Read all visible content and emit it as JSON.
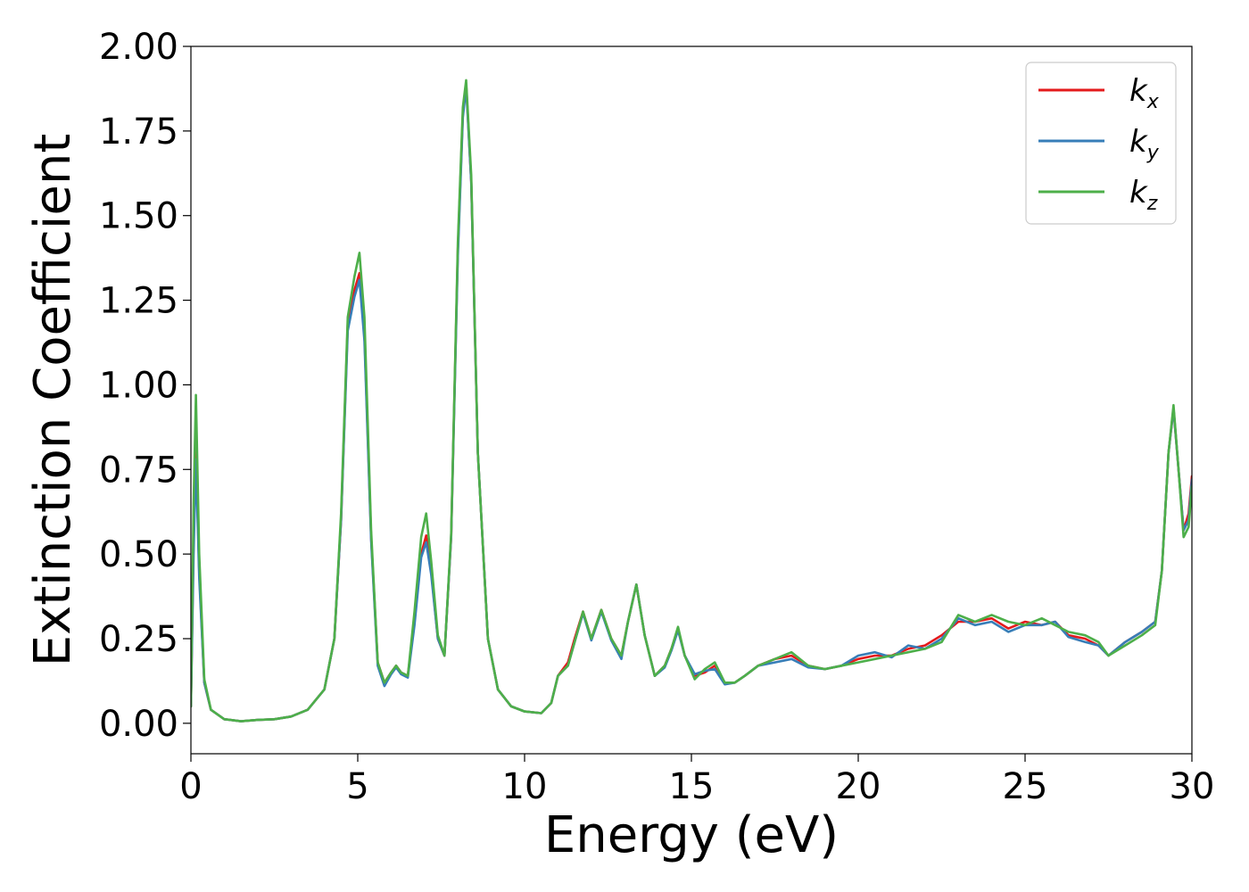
{
  "chart_data": {
    "type": "line",
    "title": "",
    "xlabel": "Energy (eV)",
    "ylabel": "Extinction Coefficient",
    "xlim": [
      0,
      30
    ],
    "ylim": [
      -0.09,
      2.0
    ],
    "xticks": [
      0,
      5,
      10,
      15,
      20,
      25,
      30
    ],
    "xtick_labels": [
      "0",
      "5",
      "10",
      "15",
      "20",
      "25",
      "30"
    ],
    "yticks": [
      0,
      0.25,
      0.5,
      0.75,
      1.0,
      1.25,
      1.5,
      1.75,
      2.0
    ],
    "ytick_labels": [
      "0.00",
      "0.25",
      "0.50",
      "0.75",
      "1.00",
      "1.25",
      "1.50",
      "1.75",
      "2.00"
    ],
    "grid": false,
    "legend_position": "top-right",
    "series": [
      {
        "name": "k_x",
        "legend_main": "k",
        "legend_sub": "x",
        "color": "#e41a1c",
        "points": [
          [
            0,
            0.05
          ],
          [
            0.08,
            0.55
          ],
          [
            0.15,
            0.83
          ],
          [
            0.25,
            0.45
          ],
          [
            0.4,
            0.12
          ],
          [
            0.6,
            0.04
          ],
          [
            1,
            0.012
          ],
          [
            1.5,
            0.006
          ],
          [
            2,
            0.01
          ],
          [
            2.5,
            0.012
          ],
          [
            3,
            0.02
          ],
          [
            3.5,
            0.04
          ],
          [
            4,
            0.1
          ],
          [
            4.3,
            0.25
          ],
          [
            4.5,
            0.6
          ],
          [
            4.7,
            1.18
          ],
          [
            4.9,
            1.28
          ],
          [
            5.05,
            1.33
          ],
          [
            5.2,
            1.15
          ],
          [
            5.4,
            0.55
          ],
          [
            5.6,
            0.18
          ],
          [
            5.8,
            0.12
          ],
          [
            6,
            0.15
          ],
          [
            6.15,
            0.17
          ],
          [
            6.3,
            0.15
          ],
          [
            6.5,
            0.14
          ],
          [
            6.7,
            0.3
          ],
          [
            6.9,
            0.5
          ],
          [
            7.05,
            0.555
          ],
          [
            7.2,
            0.45
          ],
          [
            7.4,
            0.25
          ],
          [
            7.6,
            0.2
          ],
          [
            7.8,
            0.55
          ],
          [
            8.0,
            1.4
          ],
          [
            8.15,
            1.8
          ],
          [
            8.25,
            1.89
          ],
          [
            8.4,
            1.6
          ],
          [
            8.6,
            0.8
          ],
          [
            8.9,
            0.25
          ],
          [
            9.2,
            0.1
          ],
          [
            9.6,
            0.05
          ],
          [
            10,
            0.035
          ],
          [
            10.5,
            0.03
          ],
          [
            10.8,
            0.06
          ],
          [
            11,
            0.14
          ],
          [
            11.3,
            0.18
          ],
          [
            11.5,
            0.25
          ],
          [
            11.75,
            0.33
          ],
          [
            12,
            0.25
          ],
          [
            12.3,
            0.335
          ],
          [
            12.6,
            0.25
          ],
          [
            12.9,
            0.2
          ],
          [
            13.1,
            0.3
          ],
          [
            13.35,
            0.41
          ],
          [
            13.6,
            0.26
          ],
          [
            13.9,
            0.14
          ],
          [
            14.2,
            0.17
          ],
          [
            14.4,
            0.22
          ],
          [
            14.6,
            0.28
          ],
          [
            14.8,
            0.2
          ],
          [
            15.1,
            0.14
          ],
          [
            15.4,
            0.15
          ],
          [
            15.7,
            0.17
          ],
          [
            16,
            0.12
          ],
          [
            16.3,
            0.12
          ],
          [
            16.6,
            0.14
          ],
          [
            17,
            0.17
          ],
          [
            17.5,
            0.19
          ],
          [
            18,
            0.2
          ],
          [
            18.5,
            0.17
          ],
          [
            19,
            0.16
          ],
          [
            19.5,
            0.17
          ],
          [
            20,
            0.19
          ],
          [
            20.5,
            0.2
          ],
          [
            21,
            0.2
          ],
          [
            21.5,
            0.22
          ],
          [
            22,
            0.23
          ],
          [
            22.5,
            0.26
          ],
          [
            23,
            0.3
          ],
          [
            23.5,
            0.3
          ],
          [
            24,
            0.31
          ],
          [
            24.5,
            0.28
          ],
          [
            25,
            0.3
          ],
          [
            25.5,
            0.29
          ],
          [
            25.9,
            0.3
          ],
          [
            26.3,
            0.26
          ],
          [
            26.8,
            0.25
          ],
          [
            27.2,
            0.23
          ],
          [
            27.5,
            0.2
          ],
          [
            28,
            0.24
          ],
          [
            28.5,
            0.27
          ],
          [
            28.9,
            0.3
          ],
          [
            29.1,
            0.45
          ],
          [
            29.3,
            0.8
          ],
          [
            29.45,
            0.93
          ],
          [
            29.6,
            0.75
          ],
          [
            29.75,
            0.57
          ],
          [
            29.9,
            0.62
          ],
          [
            30,
            0.73
          ]
        ]
      },
      {
        "name": "k_y",
        "legend_main": "k",
        "legend_sub": "y",
        "color": "#377eb8",
        "points": [
          [
            0,
            0.05
          ],
          [
            0.08,
            0.5
          ],
          [
            0.15,
            0.78
          ],
          [
            0.25,
            0.43
          ],
          [
            0.4,
            0.12
          ],
          [
            0.6,
            0.04
          ],
          [
            1,
            0.012
          ],
          [
            1.5,
            0.006
          ],
          [
            2,
            0.01
          ],
          [
            2.5,
            0.012
          ],
          [
            3,
            0.02
          ],
          [
            3.5,
            0.04
          ],
          [
            4,
            0.1
          ],
          [
            4.3,
            0.25
          ],
          [
            4.5,
            0.6
          ],
          [
            4.7,
            1.16
          ],
          [
            4.9,
            1.26
          ],
          [
            5.05,
            1.31
          ],
          [
            5.2,
            1.13
          ],
          [
            5.4,
            0.54
          ],
          [
            5.6,
            0.17
          ],
          [
            5.8,
            0.11
          ],
          [
            6,
            0.145
          ],
          [
            6.15,
            0.165
          ],
          [
            6.3,
            0.145
          ],
          [
            6.5,
            0.135
          ],
          [
            6.7,
            0.29
          ],
          [
            6.9,
            0.49
          ],
          [
            7.05,
            0.535
          ],
          [
            7.2,
            0.44
          ],
          [
            7.4,
            0.25
          ],
          [
            7.6,
            0.2
          ],
          [
            7.8,
            0.55
          ],
          [
            8.0,
            1.38
          ],
          [
            8.15,
            1.79
          ],
          [
            8.25,
            1.88
          ],
          [
            8.4,
            1.6
          ],
          [
            8.6,
            0.8
          ],
          [
            8.9,
            0.25
          ],
          [
            9.2,
            0.1
          ],
          [
            9.6,
            0.05
          ],
          [
            10,
            0.035
          ],
          [
            10.5,
            0.03
          ],
          [
            10.8,
            0.06
          ],
          [
            11,
            0.14
          ],
          [
            11.3,
            0.17
          ],
          [
            11.5,
            0.24
          ],
          [
            11.75,
            0.325
          ],
          [
            12,
            0.245
          ],
          [
            12.3,
            0.33
          ],
          [
            12.6,
            0.245
          ],
          [
            12.9,
            0.19
          ],
          [
            13.1,
            0.3
          ],
          [
            13.35,
            0.41
          ],
          [
            13.6,
            0.26
          ],
          [
            13.9,
            0.14
          ],
          [
            14.2,
            0.165
          ],
          [
            14.4,
            0.215
          ],
          [
            14.6,
            0.275
          ],
          [
            14.8,
            0.2
          ],
          [
            15.1,
            0.145
          ],
          [
            15.4,
            0.155
          ],
          [
            15.7,
            0.16
          ],
          [
            16,
            0.115
          ],
          [
            16.3,
            0.12
          ],
          [
            16.6,
            0.14
          ],
          [
            17,
            0.17
          ],
          [
            17.5,
            0.18
          ],
          [
            18,
            0.19
          ],
          [
            18.5,
            0.165
          ],
          [
            19,
            0.16
          ],
          [
            19.5,
            0.17
          ],
          [
            20,
            0.2
          ],
          [
            20.5,
            0.21
          ],
          [
            21,
            0.195
          ],
          [
            21.5,
            0.23
          ],
          [
            22,
            0.22
          ],
          [
            22.5,
            0.25
          ],
          [
            23,
            0.31
          ],
          [
            23.5,
            0.29
          ],
          [
            24,
            0.3
          ],
          [
            24.5,
            0.27
          ],
          [
            25,
            0.29
          ],
          [
            25.5,
            0.29
          ],
          [
            25.9,
            0.3
          ],
          [
            26.3,
            0.255
          ],
          [
            26.8,
            0.24
          ],
          [
            27.2,
            0.23
          ],
          [
            27.5,
            0.2
          ],
          [
            28,
            0.24
          ],
          [
            28.5,
            0.27
          ],
          [
            28.9,
            0.3
          ],
          [
            29.1,
            0.45
          ],
          [
            29.3,
            0.8
          ],
          [
            29.45,
            0.93
          ],
          [
            29.6,
            0.75
          ],
          [
            29.75,
            0.57
          ],
          [
            29.9,
            0.6
          ],
          [
            30,
            0.72
          ]
        ]
      },
      {
        "name": "k_z",
        "legend_main": "k",
        "legend_sub": "z",
        "color": "#4daf4a",
        "points": [
          [
            0,
            0.05
          ],
          [
            0.08,
            0.65
          ],
          [
            0.15,
            0.97
          ],
          [
            0.25,
            0.5
          ],
          [
            0.4,
            0.13
          ],
          [
            0.6,
            0.04
          ],
          [
            1,
            0.012
          ],
          [
            1.5,
            0.006
          ],
          [
            2,
            0.01
          ],
          [
            2.5,
            0.012
          ],
          [
            3,
            0.02
          ],
          [
            3.5,
            0.04
          ],
          [
            4,
            0.1
          ],
          [
            4.3,
            0.25
          ],
          [
            4.5,
            0.62
          ],
          [
            4.7,
            1.2
          ],
          [
            4.9,
            1.32
          ],
          [
            5.05,
            1.39
          ],
          [
            5.2,
            1.2
          ],
          [
            5.4,
            0.57
          ],
          [
            5.6,
            0.18
          ],
          [
            5.8,
            0.12
          ],
          [
            6,
            0.15
          ],
          [
            6.15,
            0.17
          ],
          [
            6.3,
            0.15
          ],
          [
            6.5,
            0.14
          ],
          [
            6.7,
            0.33
          ],
          [
            6.9,
            0.55
          ],
          [
            7.05,
            0.62
          ],
          [
            7.2,
            0.48
          ],
          [
            7.4,
            0.26
          ],
          [
            7.6,
            0.2
          ],
          [
            7.8,
            0.56
          ],
          [
            8.0,
            1.42
          ],
          [
            8.15,
            1.82
          ],
          [
            8.25,
            1.9
          ],
          [
            8.4,
            1.62
          ],
          [
            8.6,
            0.8
          ],
          [
            8.9,
            0.25
          ],
          [
            9.2,
            0.1
          ],
          [
            9.6,
            0.05
          ],
          [
            10,
            0.035
          ],
          [
            10.5,
            0.03
          ],
          [
            10.8,
            0.06
          ],
          [
            11,
            0.14
          ],
          [
            11.3,
            0.17
          ],
          [
            11.5,
            0.24
          ],
          [
            11.75,
            0.33
          ],
          [
            12,
            0.25
          ],
          [
            12.3,
            0.335
          ],
          [
            12.6,
            0.25
          ],
          [
            12.9,
            0.2
          ],
          [
            13.1,
            0.3
          ],
          [
            13.35,
            0.41
          ],
          [
            13.6,
            0.26
          ],
          [
            13.9,
            0.14
          ],
          [
            14.2,
            0.17
          ],
          [
            14.4,
            0.22
          ],
          [
            14.6,
            0.285
          ],
          [
            14.8,
            0.2
          ],
          [
            15.1,
            0.13
          ],
          [
            15.4,
            0.16
          ],
          [
            15.7,
            0.18
          ],
          [
            16,
            0.12
          ],
          [
            16.3,
            0.12
          ],
          [
            16.6,
            0.14
          ],
          [
            17,
            0.17
          ],
          [
            17.5,
            0.19
          ],
          [
            18,
            0.21
          ],
          [
            18.5,
            0.17
          ],
          [
            19,
            0.16
          ],
          [
            19.5,
            0.17
          ],
          [
            20,
            0.18
          ],
          [
            20.5,
            0.19
          ],
          [
            21,
            0.2
          ],
          [
            21.5,
            0.21
          ],
          [
            22,
            0.22
          ],
          [
            22.5,
            0.24
          ],
          [
            23,
            0.32
          ],
          [
            23.5,
            0.3
          ],
          [
            24,
            0.32
          ],
          [
            24.5,
            0.3
          ],
          [
            25,
            0.29
          ],
          [
            25.5,
            0.31
          ],
          [
            25.9,
            0.29
          ],
          [
            26.3,
            0.27
          ],
          [
            26.8,
            0.26
          ],
          [
            27.2,
            0.24
          ],
          [
            27.5,
            0.2
          ],
          [
            28,
            0.23
          ],
          [
            28.5,
            0.26
          ],
          [
            28.9,
            0.29
          ],
          [
            29.1,
            0.45
          ],
          [
            29.3,
            0.8
          ],
          [
            29.45,
            0.94
          ],
          [
            29.6,
            0.75
          ],
          [
            29.75,
            0.55
          ],
          [
            29.9,
            0.58
          ],
          [
            30,
            0.7
          ]
        ]
      }
    ]
  }
}
